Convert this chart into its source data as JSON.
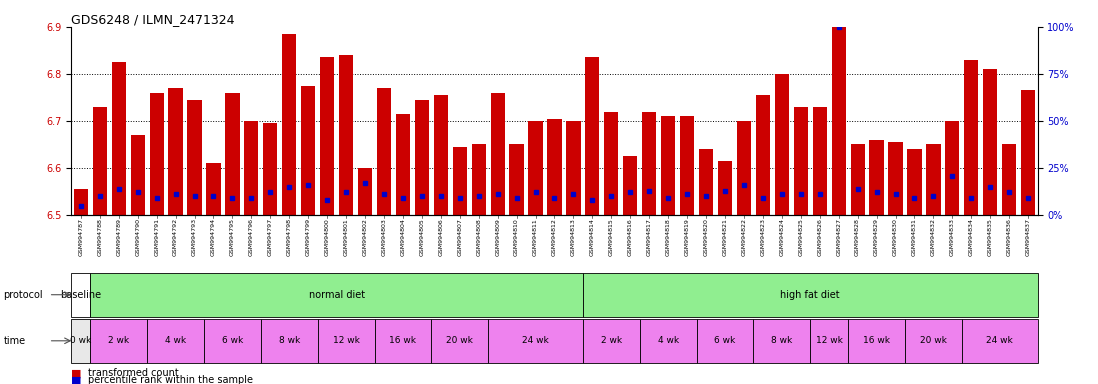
{
  "title": "GDS6248 / ILMN_2471324",
  "samples": [
    "GSM994787",
    "GSM994788",
    "GSM994789",
    "GSM994790",
    "GSM994791",
    "GSM994792",
    "GSM994793",
    "GSM994794",
    "GSM994795",
    "GSM994796",
    "GSM994797",
    "GSM994798",
    "GSM994799",
    "GSM994800",
    "GSM994801",
    "GSM994802",
    "GSM994803",
    "GSM994804",
    "GSM994805",
    "GSM994806",
    "GSM994807",
    "GSM994808",
    "GSM994809",
    "GSM994810",
    "GSM994811",
    "GSM994812",
    "GSM994813",
    "GSM994814",
    "GSM994815",
    "GSM994816",
    "GSM994817",
    "GSM994818",
    "GSM994819",
    "GSM994820",
    "GSM994821",
    "GSM994822",
    "GSM994823",
    "GSM994824",
    "GSM994825",
    "GSM994826",
    "GSM994827",
    "GSM994828",
    "GSM994829",
    "GSM994830",
    "GSM994831",
    "GSM994832",
    "GSM994833",
    "GSM994834",
    "GSM994835",
    "GSM994836",
    "GSM994837"
  ],
  "red_values": [
    6.555,
    6.73,
    6.825,
    6.67,
    6.76,
    6.77,
    6.745,
    6.61,
    6.76,
    6.7,
    6.695,
    6.885,
    6.775,
    6.835,
    6.84,
    6.6,
    6.77,
    6.715,
    6.745,
    6.755,
    6.645,
    6.65,
    6.76,
    6.65,
    6.7,
    6.705,
    6.7,
    6.835,
    6.72,
    6.625,
    6.72,
    6.71,
    6.71,
    6.64,
    6.615,
    6.7,
    6.755,
    6.8,
    6.73,
    6.73,
    6.9,
    6.65,
    6.66,
    6.655,
    6.64,
    6.65,
    6.7,
    6.83,
    6.81,
    6.65,
    6.765
  ],
  "blue_values": [
    5,
    10,
    14,
    12,
    9,
    11,
    10,
    10,
    9,
    9,
    12,
    15,
    16,
    8,
    12,
    17,
    11,
    9,
    10,
    10,
    9,
    10,
    11,
    9,
    12,
    9,
    11,
    8,
    10,
    12,
    13,
    9,
    11,
    10,
    13,
    16,
    9,
    11,
    11,
    11,
    100,
    14,
    12,
    11,
    9,
    10,
    21,
    9,
    15,
    12,
    9
  ],
  "ymin": 6.5,
  "ymax": 6.9,
  "y_ticks_red": [
    6.5,
    6.6,
    6.7,
    6.8,
    6.9
  ],
  "y_ticks_blue": [
    0,
    25,
    50,
    75,
    100
  ],
  "protocol_groups": [
    {
      "label": "baseline",
      "color": "#ffffff",
      "start": 0,
      "end": 1
    },
    {
      "label": "normal diet",
      "color": "#90ee90",
      "start": 1,
      "end": 27
    },
    {
      "label": "high fat diet",
      "color": "#90ee90",
      "start": 27,
      "end": 51
    }
  ],
  "time_groups": [
    {
      "label": "0 wk",
      "color": "#e8e8e8",
      "start": 0,
      "end": 1
    },
    {
      "label": "2 wk",
      "color": "#ee82ee",
      "start": 1,
      "end": 4
    },
    {
      "label": "4 wk",
      "color": "#ee82ee",
      "start": 4,
      "end": 7
    },
    {
      "label": "6 wk",
      "color": "#ee82ee",
      "start": 7,
      "end": 10
    },
    {
      "label": "8 wk",
      "color": "#ee82ee",
      "start": 10,
      "end": 13
    },
    {
      "label": "12 wk",
      "color": "#ee82ee",
      "start": 13,
      "end": 16
    },
    {
      "label": "16 wk",
      "color": "#ee82ee",
      "start": 16,
      "end": 19
    },
    {
      "label": "20 wk",
      "color": "#ee82ee",
      "start": 19,
      "end": 22
    },
    {
      "label": "24 wk",
      "color": "#ee82ee",
      "start": 22,
      "end": 27
    },
    {
      "label": "2 wk",
      "color": "#ee82ee",
      "start": 27,
      "end": 30
    },
    {
      "label": "4 wk",
      "color": "#ee82ee",
      "start": 30,
      "end": 33
    },
    {
      "label": "6 wk",
      "color": "#ee82ee",
      "start": 33,
      "end": 36
    },
    {
      "label": "8 wk",
      "color": "#ee82ee",
      "start": 36,
      "end": 39
    },
    {
      "label": "12 wk",
      "color": "#ee82ee",
      "start": 39,
      "end": 41
    },
    {
      "label": "16 wk",
      "color": "#ee82ee",
      "start": 41,
      "end": 44
    },
    {
      "label": "20 wk",
      "color": "#ee82ee",
      "start": 44,
      "end": 47
    },
    {
      "label": "24 wk",
      "color": "#ee82ee",
      "start": 47,
      "end": 51
    }
  ],
  "bar_color": "#cc0000",
  "blue_color": "#0000cc",
  "background_color": "#ffffff",
  "tick_label_color_red": "#cc0000",
  "tick_label_color_blue": "#0000cc",
  "hgrid_values": [
    6.6,
    6.7,
    6.8
  ],
  "xtick_bg": "#d8d8d8"
}
